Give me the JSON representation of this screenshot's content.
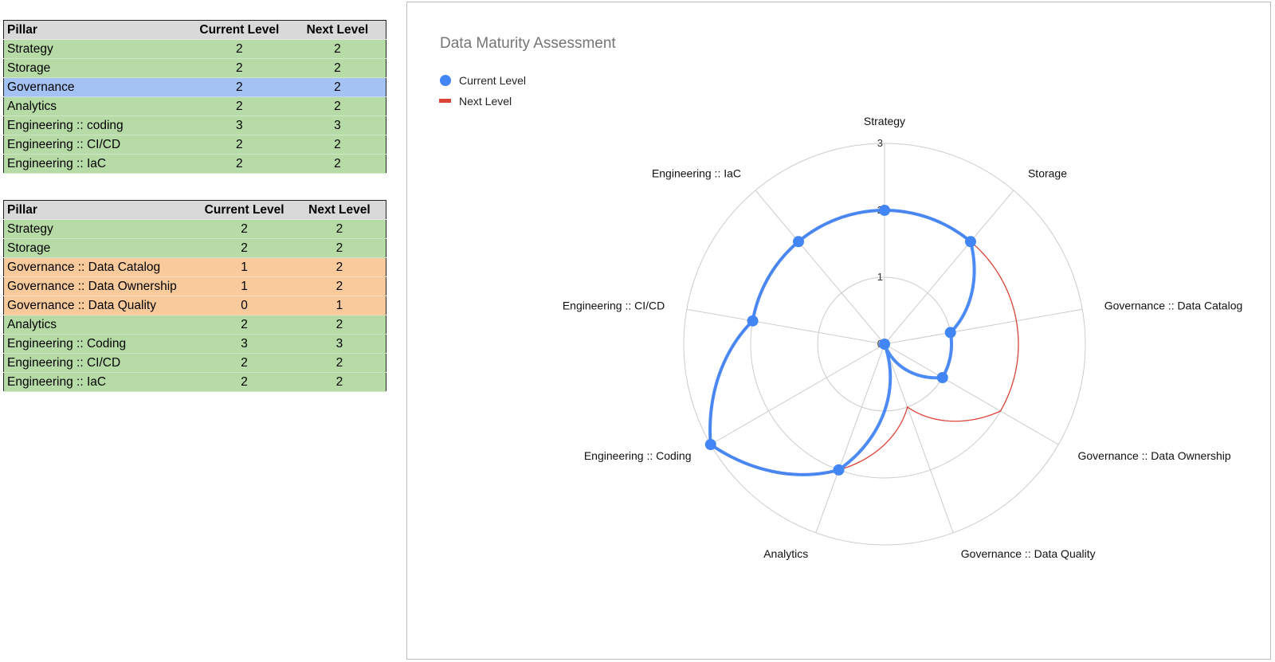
{
  "table_headers": {
    "pillar": "Pillar",
    "current": "Current Level",
    "next": "Next Level"
  },
  "table1": {
    "rows": [
      {
        "pillar": "Strategy",
        "current": "2",
        "next": "2",
        "status": "green"
      },
      {
        "pillar": "Storage",
        "current": "2",
        "next": "2",
        "status": "green"
      },
      {
        "pillar": "Governance",
        "current": "2",
        "next": "2",
        "status": "blue"
      },
      {
        "pillar": "Analytics",
        "current": "2",
        "next": "2",
        "status": "green"
      },
      {
        "pillar": "Engineering :: coding",
        "current": "3",
        "next": "3",
        "status": "green"
      },
      {
        "pillar": "Engineering :: CI/CD",
        "current": "2",
        "next": "2",
        "status": "green"
      },
      {
        "pillar": "Engineering :: IaC",
        "current": "2",
        "next": "2",
        "status": "green"
      }
    ]
  },
  "table2": {
    "rows": [
      {
        "pillar": "Strategy",
        "current": "2",
        "next": "2",
        "status": "green"
      },
      {
        "pillar": "Storage",
        "current": "2",
        "next": "2",
        "status": "green"
      },
      {
        "pillar": "Governance :: Data Catalog",
        "current": "1",
        "next": "2",
        "status": "orange"
      },
      {
        "pillar": "Governance :: Data Ownership",
        "current": "1",
        "next": "2",
        "status": "orange"
      },
      {
        "pillar": "Governance :: Data Quality",
        "current": "0",
        "next": "1",
        "status": "orange"
      },
      {
        "pillar": "Analytics",
        "current": "2",
        "next": "2",
        "status": "green"
      },
      {
        "pillar": "Engineering :: Coding",
        "current": "3",
        "next": "3",
        "status": "green"
      },
      {
        "pillar": "Engineering :: CI/CD",
        "current": "2",
        "next": "2",
        "status": "green"
      },
      {
        "pillar": "Engineering :: IaC",
        "current": "2",
        "next": "2",
        "status": "green"
      }
    ]
  },
  "colors": {
    "green": "#b7dba6",
    "blue": "#a4c2f4",
    "orange": "#f9cb9c",
    "current_series": "#4285f4",
    "next_series": "#db4437"
  },
  "chart_data": {
    "type": "radar",
    "title": "Data Maturity Assessment",
    "categories": [
      "Strategy",
      "Storage",
      "Governance :: Data Catalog",
      "Governance :: Data Ownership",
      "Governance :: Data Quality",
      "Analytics",
      "Engineering :: Coding",
      "Engineering :: CI/CD",
      "Engineering :: IaC"
    ],
    "series": [
      {
        "name": "Current Level",
        "values": [
          2,
          2,
          1,
          1,
          0,
          2,
          3,
          2,
          2
        ],
        "color": "#4285f4",
        "marker": "circle"
      },
      {
        "name": "Next Level",
        "values": [
          2,
          2,
          2,
          2,
          1,
          2,
          3,
          2,
          2
        ],
        "color": "#db4437",
        "marker": "none"
      }
    ],
    "rlim": [
      0,
      3
    ],
    "ticks": [
      "0",
      "1",
      "2",
      "3"
    ],
    "grid": true,
    "legend": "top-left"
  }
}
